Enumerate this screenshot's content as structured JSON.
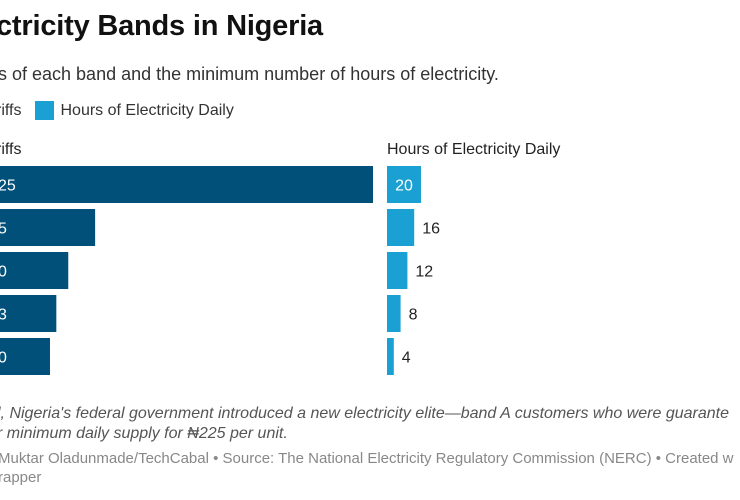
{
  "title": "ctricity Bands in Nigeria",
  "subtitle": "s of each band and the minimum number of hours of electricity.",
  "legend": [
    {
      "label": "riffs",
      "color": "#00507a"
    },
    {
      "label": "Hours of Electricity Daily",
      "color": "#1aa0d2"
    }
  ],
  "colors": {
    "tariff": "#00507a",
    "hours": "#1aa0d2",
    "label_dark": "#222222",
    "label_light": "#ffffff"
  },
  "chart_data": {
    "type": "bar",
    "orientation": "horizontal",
    "panels": [
      {
        "name": "Tariffs",
        "header": "riffs",
        "value_labels": [
          "25",
          "5",
          "0",
          "3",
          "0"
        ],
        "relative_values": [
          1.0,
          0.255,
          0.183,
          0.151,
          0.134
        ]
      },
      {
        "name": "Hours of Electricity Daily",
        "header": "Hours of Electricity Daily",
        "values": [
          20,
          16,
          12,
          8,
          4
        ],
        "value_labels": [
          "20",
          "16",
          "12",
          "8",
          "4"
        ],
        "xlim": [
          0,
          20
        ]
      }
    ]
  },
  "note": {
    "line1": "l, Nigeria's federal government introduced a new electricity elite—band A customers who were guarante",
    "line2": "r minimum daily supply for ₦225 per unit."
  },
  "credit": {
    "line1": "Muktar Oladunmade/TechCabal • Source: The National Electricity Regulatory Commission (NERC)  • Created w",
    "line2": "rapper"
  }
}
